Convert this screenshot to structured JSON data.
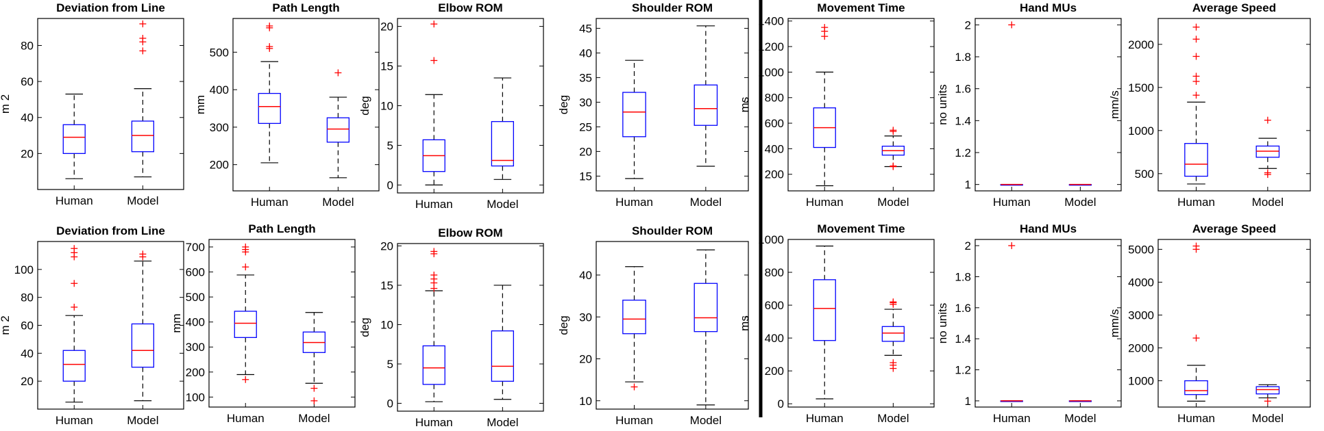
{
  "chart_data": [
    {
      "type": "box",
      "title": "Deviation from Line",
      "ylabel": "m 2",
      "ylim": [
        0,
        95
      ],
      "yticks": [
        "20",
        "40",
        "60",
        "80"
      ],
      "categories": [
        "Human",
        "Model"
      ],
      "grid": false,
      "boxes": [
        {
          "category": "Human",
          "whisker_low": 6,
          "q1": 20,
          "median": 29,
          "q3": 36,
          "whisker_high": 53,
          "outliers": []
        },
        {
          "category": "Model",
          "whisker_low": 7,
          "q1": 21,
          "median": 30,
          "q3": 38,
          "whisker_high": 56,
          "outliers": [
            77,
            82,
            84,
            92
          ]
        }
      ]
    },
    {
      "type": "box",
      "title": "Path Length",
      "ylabel": "mm",
      "ylim": [
        130,
        590
      ],
      "yticks": [
        "200",
        "300",
        "400",
        "500"
      ],
      "categories": [
        "Human",
        "Model"
      ],
      "grid": false,
      "boxes": [
        {
          "category": "Human",
          "whisker_low": 205,
          "q1": 310,
          "median": 355,
          "q3": 390,
          "whisker_high": 475,
          "outliers": [
            510,
            515,
            565,
            570
          ]
        },
        {
          "category": "Model",
          "whisker_low": 165,
          "q1": 260,
          "median": 295,
          "q3": 325,
          "whisker_high": 380,
          "outliers": [
            445
          ]
        }
      ]
    },
    {
      "type": "box",
      "title": "Elbow ROM",
      "ylabel": "deg",
      "ylim": [
        -1,
        21
      ],
      "yticks": [
        "0",
        "5",
        "10",
        "15",
        "20"
      ],
      "categories": [
        "Human",
        "Model"
      ],
      "grid": false,
      "boxes": [
        {
          "category": "Human",
          "whisker_low": 0,
          "q1": 1.7,
          "median": 3.7,
          "q3": 5.7,
          "whisker_high": 11.4,
          "outliers": [
            15.7,
            20.3
          ]
        },
        {
          "category": "Model",
          "whisker_low": 0.7,
          "q1": 2.4,
          "median": 3.1,
          "q3": 8,
          "whisker_high": 13.5,
          "outliers": []
        }
      ]
    },
    {
      "type": "box",
      "title": "Shoulder ROM",
      "ylabel": "deg",
      "ylim": [
        12,
        47
      ],
      "yticks": [
        "15",
        "20",
        "25",
        "30",
        "35",
        "40",
        "45"
      ],
      "categories": [
        "Human",
        "Model"
      ],
      "grid": false,
      "boxes": [
        {
          "category": "Human",
          "whisker_low": 14.5,
          "q1": 23,
          "median": 28,
          "q3": 32,
          "whisker_high": 38.5,
          "outliers": []
        },
        {
          "category": "Model",
          "whisker_low": 17,
          "q1": 25.3,
          "median": 28.7,
          "q3": 33.5,
          "whisker_high": 45.5,
          "outliers": []
        }
      ]
    },
    {
      "type": "box",
      "title": "Movement Time",
      "ylabel": "ms",
      "ylim": [
        70,
        1420
      ],
      "yticks": [
        "200",
        "400",
        "600",
        "800",
        "1000",
        "1200",
        "1400"
      ],
      "categories": [
        "Human",
        "Model"
      ],
      "grid": false,
      "boxes": [
        {
          "category": "Human",
          "whisker_low": 110,
          "q1": 410,
          "median": 565,
          "q3": 720,
          "whisker_high": 1000,
          "outliers": [
            1280,
            1320,
            1350
          ]
        },
        {
          "category": "Model",
          "whisker_low": 260,
          "q1": 350,
          "median": 385,
          "q3": 420,
          "whisker_high": 500,
          "outliers": [
            260,
            265,
            535,
            545
          ]
        }
      ]
    },
    {
      "type": "box",
      "title": "Hand MUs",
      "ylabel": "no units",
      "ylim": [
        0.96,
        2.04
      ],
      "yticks": [
        "1",
        "1.2",
        "1.4",
        "1.6",
        "1.8",
        "2"
      ],
      "categories": [
        "Human",
        "Model"
      ],
      "grid": false,
      "boxes": [
        {
          "category": "Human",
          "whisker_low": 1,
          "q1": 1,
          "median": 1,
          "q3": 1,
          "whisker_high": 1,
          "outliers": [
            2
          ]
        },
        {
          "category": "Model",
          "whisker_low": 1,
          "q1": 1,
          "median": 1,
          "q3": 1,
          "whisker_high": 1,
          "outliers": []
        }
      ]
    },
    {
      "type": "box",
      "title": "Average Speed",
      "ylabel": "mm/s",
      "ylim": [
        300,
        2300
      ],
      "yticks": [
        "500",
        "1000",
        "1500",
        "2000"
      ],
      "categories": [
        "Human",
        "Model"
      ],
      "grid": false,
      "boxes": [
        {
          "category": "Human",
          "whisker_low": 380,
          "q1": 470,
          "median": 610,
          "q3": 850,
          "whisker_high": 1330,
          "outliers": [
            1410,
            1570,
            1630,
            1860,
            2060,
            2200
          ]
        },
        {
          "category": "Model",
          "whisker_low": 560,
          "q1": 690,
          "median": 760,
          "q3": 820,
          "whisker_high": 910,
          "outliers": [
            490,
            510,
            1120
          ]
        }
      ]
    },
    {
      "type": "box",
      "title": "Deviation from Line",
      "ylabel": "m 2",
      "ylim": [
        0,
        120
      ],
      "yticks": [
        "20",
        "40",
        "60",
        "80",
        "100"
      ],
      "categories": [
        "Human",
        "Model"
      ],
      "grid": false,
      "boxes": [
        {
          "category": "Human",
          "whisker_low": 5,
          "q1": 20,
          "median": 32,
          "q3": 42,
          "whisker_high": 67,
          "outliers": [
            73,
            90,
            109,
            112,
            115
          ]
        },
        {
          "category": "Model",
          "whisker_low": 6,
          "q1": 30,
          "median": 42,
          "q3": 61,
          "whisker_high": 106,
          "outliers": [
            109,
            111
          ]
        }
      ]
    },
    {
      "type": "box",
      "title": "Path Length",
      "ylabel": "mm",
      "ylim": [
        60,
        730
      ],
      "yticks": [
        "100",
        "200",
        "300",
        "400",
        "500",
        "600",
        "700"
      ],
      "categories": [
        "Human",
        "Model"
      ],
      "grid": false,
      "boxes": [
        {
          "category": "Human",
          "whisker_low": 190,
          "q1": 338,
          "median": 395,
          "q3": 443,
          "whisker_high": 588,
          "outliers": [
            170,
            620,
            680,
            690,
            700
          ]
        },
        {
          "category": "Model",
          "whisker_low": 155,
          "q1": 278,
          "median": 318,
          "q3": 360,
          "whisker_high": 438,
          "outliers": [
            85,
            135
          ]
        }
      ]
    },
    {
      "type": "box",
      "title": "Elbow ROM",
      "ylabel": "deg",
      "ylim": [
        -1,
        20.3
      ],
      "yticks": [
        "0",
        "5",
        "10",
        "15",
        "20"
      ],
      "categories": [
        "Human",
        "Model"
      ],
      "grid": false,
      "boxes": [
        {
          "category": "Human",
          "whisker_low": 0.2,
          "q1": 2.4,
          "median": 4.5,
          "q3": 7.3,
          "whisker_high": 14.3,
          "outliers": [
            14.6,
            15.3,
            15.8,
            16.3,
            19,
            19.3
          ]
        },
        {
          "category": "Model",
          "whisker_low": 0.5,
          "q1": 2.8,
          "median": 4.7,
          "q3": 9.2,
          "whisker_high": 15,
          "outliers": []
        }
      ]
    },
    {
      "type": "box",
      "title": "Shoulder ROM",
      "ylabel": "deg",
      "ylim": [
        8,
        48
      ],
      "yticks": [
        "10",
        "20",
        "30",
        "40"
      ],
      "categories": [
        "Human",
        "Model"
      ],
      "grid": false,
      "boxes": [
        {
          "category": "Human",
          "whisker_low": 14.5,
          "q1": 26,
          "median": 29.5,
          "q3": 34,
          "whisker_high": 42,
          "outliers": [
            13.3
          ]
        },
        {
          "category": "Model",
          "whisker_low": 9,
          "q1": 26.5,
          "median": 29.8,
          "q3": 38,
          "whisker_high": 46,
          "outliers": []
        }
      ]
    },
    {
      "type": "box",
      "title": "Movement Time",
      "ylabel": "ms",
      "ylim": [
        -20,
        1000
      ],
      "yticks": [
        "0",
        "200",
        "400",
        "600",
        "800",
        "1000"
      ],
      "categories": [
        "Human",
        "Model"
      ],
      "grid": false,
      "boxes": [
        {
          "category": "Human",
          "whisker_low": 30,
          "q1": 385,
          "median": 580,
          "q3": 755,
          "whisker_high": 960,
          "outliers": []
        },
        {
          "category": "Model",
          "whisker_low": 295,
          "q1": 380,
          "median": 430,
          "q3": 470,
          "whisker_high": 575,
          "outliers": [
            215,
            235,
            250,
            605,
            615,
            620
          ]
        }
      ]
    },
    {
      "type": "box",
      "title": "Hand MUs",
      "ylabel": "no units",
      "ylim": [
        0.96,
        2.04
      ],
      "yticks": [
        "1",
        "1.2",
        "1.4",
        "1.6",
        "1.8",
        "2"
      ],
      "categories": [
        "Human",
        "Model"
      ],
      "grid": false,
      "boxes": [
        {
          "category": "Human",
          "whisker_low": 1,
          "q1": 1,
          "median": 1,
          "q3": 1,
          "whisker_high": 1,
          "outliers": [
            2
          ]
        },
        {
          "category": "Model",
          "whisker_low": 1,
          "q1": 1,
          "median": 1,
          "q3": 1,
          "whisker_high": 1,
          "outliers": []
        }
      ]
    },
    {
      "type": "box",
      "title": "Average Speed",
      "ylabel": "mm/s",
      "ylim": [
        200,
        5300
      ],
      "yticks": [
        "1000",
        "2000",
        "3000",
        "4000",
        "5000"
      ],
      "categories": [
        "Human",
        "Model"
      ],
      "grid": false,
      "boxes": [
        {
          "category": "Human",
          "whisker_low": 380,
          "q1": 580,
          "median": 700,
          "q3": 1000,
          "whisker_high": 1470,
          "outliers": [
            2300,
            5000,
            5100
          ]
        },
        {
          "category": "Model",
          "whisker_low": 480,
          "q1": 600,
          "median": 730,
          "q3": 820,
          "whisker_high": 880,
          "outliers": [
            380
          ]
        }
      ]
    }
  ],
  "colors": {
    "box": "#0000ff",
    "median": "#ff0000",
    "outlier": "#ff0000",
    "whisker": "#000000",
    "divider": "#000000"
  }
}
